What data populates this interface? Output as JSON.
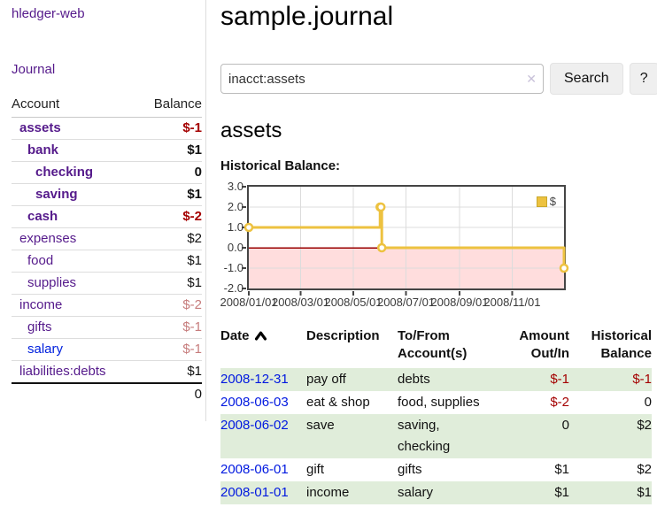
{
  "sidebar": {
    "brand": "hledger-web",
    "journal_link": "Journal",
    "accounts_table": {
      "headers": [
        "Account",
        "Balance"
      ],
      "rows": [
        {
          "account": "assets",
          "balance": "$-1",
          "depth": 1,
          "matched": true,
          "negative": true
        },
        {
          "account": "bank",
          "balance": "$1",
          "depth": 2,
          "matched": true,
          "negative": false
        },
        {
          "account": "checking",
          "balance": "0",
          "depth": 3,
          "matched": true,
          "negative": false
        },
        {
          "account": "saving",
          "balance": "$1",
          "depth": 3,
          "matched": true,
          "negative": false
        },
        {
          "account": "cash",
          "balance": "$-2",
          "depth": 2,
          "matched": true,
          "negative": true
        },
        {
          "account": "expenses",
          "balance": "$2",
          "depth": 1,
          "matched": false,
          "negative": false
        },
        {
          "account": "food",
          "balance": "$1",
          "depth": 2,
          "matched": false,
          "negative": false
        },
        {
          "account": "supplies",
          "balance": "$1",
          "depth": 2,
          "matched": false,
          "negative": false
        },
        {
          "account": "income",
          "balance": "$-2",
          "depth": 1,
          "matched": false,
          "negative": true
        },
        {
          "account": "gifts",
          "balance": "$-1",
          "depth": 2,
          "matched": false,
          "negative": true
        },
        {
          "account": "salary",
          "balance": "$-1",
          "depth": 2,
          "matched": false,
          "negative": true,
          "unvisited": true
        },
        {
          "account": "liabilities:debts",
          "balance": "$1",
          "depth": 1,
          "matched": false,
          "negative": false
        }
      ],
      "total": "0"
    }
  },
  "main": {
    "title": "sample.journal",
    "search": {
      "value": "inacct:assets",
      "clear_icon": "✕",
      "button_label": "Search",
      "help_button_label": "?"
    },
    "account_heading": "assets",
    "chart_label": "Historical Balance:",
    "register_table": {
      "headers": [
        "Date",
        "Description",
        "To/From Account(s)",
        "Amount Out/In",
        "Historical Balance"
      ],
      "sorted_column": "Date",
      "sort_direction": "ascending",
      "rows": [
        {
          "date": "2008-12-31",
          "description": "pay off",
          "accounts": "debts",
          "amount": "$-1",
          "amount_negative": true,
          "balance": "$-1",
          "balance_negative": true
        },
        {
          "date": "2008-06-03",
          "description": "eat & shop",
          "accounts": "food, supplies",
          "amount": "$-2",
          "amount_negative": true,
          "balance": "0",
          "balance_negative": false
        },
        {
          "date": "2008-06-02",
          "description": "save",
          "accounts": "saving, checking",
          "amount": "0",
          "amount_negative": false,
          "balance": "$2",
          "balance_negative": false
        },
        {
          "date": "2008-06-01",
          "description": "gift",
          "accounts": "gifts",
          "amount": "$1",
          "amount_negative": false,
          "balance": "$2",
          "balance_negative": false
        },
        {
          "date": "2008-01-01",
          "description": "income",
          "accounts": "salary",
          "amount": "$1",
          "amount_negative": false,
          "balance": "$1",
          "balance_negative": false
        }
      ]
    }
  },
  "chart_data": {
    "type": "line",
    "title": "Historical Balance",
    "step": true,
    "xlim": [
      "2008-01-01",
      "2008-12-31"
    ],
    "ylim": [
      -2,
      3
    ],
    "y_ticks": [
      3.0,
      2.0,
      1.0,
      0.0,
      -1.0,
      -2.0
    ],
    "x_ticks": [
      "2008/01/01",
      "2008/03/01",
      "2008/05/01",
      "2008/07/01",
      "2008/09/01",
      "2008/11/01"
    ],
    "grid": true,
    "legend": {
      "label": "$",
      "position": "top-right"
    },
    "series": [
      {
        "name": "$",
        "color": "#edc240",
        "points": [
          [
            "2008-01-01",
            1
          ],
          [
            "2008-06-01",
            2
          ],
          [
            "2008-06-02",
            2
          ],
          [
            "2008-06-03",
            0
          ],
          [
            "2008-12-31",
            -1
          ]
        ]
      }
    ],
    "negative_region_color": "#ffdddd",
    "zero_line_color": "#990000",
    "gridline_color": "#dcdcdc",
    "border_color": "#454545"
  },
  "colors": {
    "link_purple": "#551a8b",
    "link_blue": "#0020dd",
    "negative_red": "#a40000",
    "negative_faded": "#c67c7c",
    "row_green": "#e0edda",
    "series_gold": "#edc240"
  }
}
